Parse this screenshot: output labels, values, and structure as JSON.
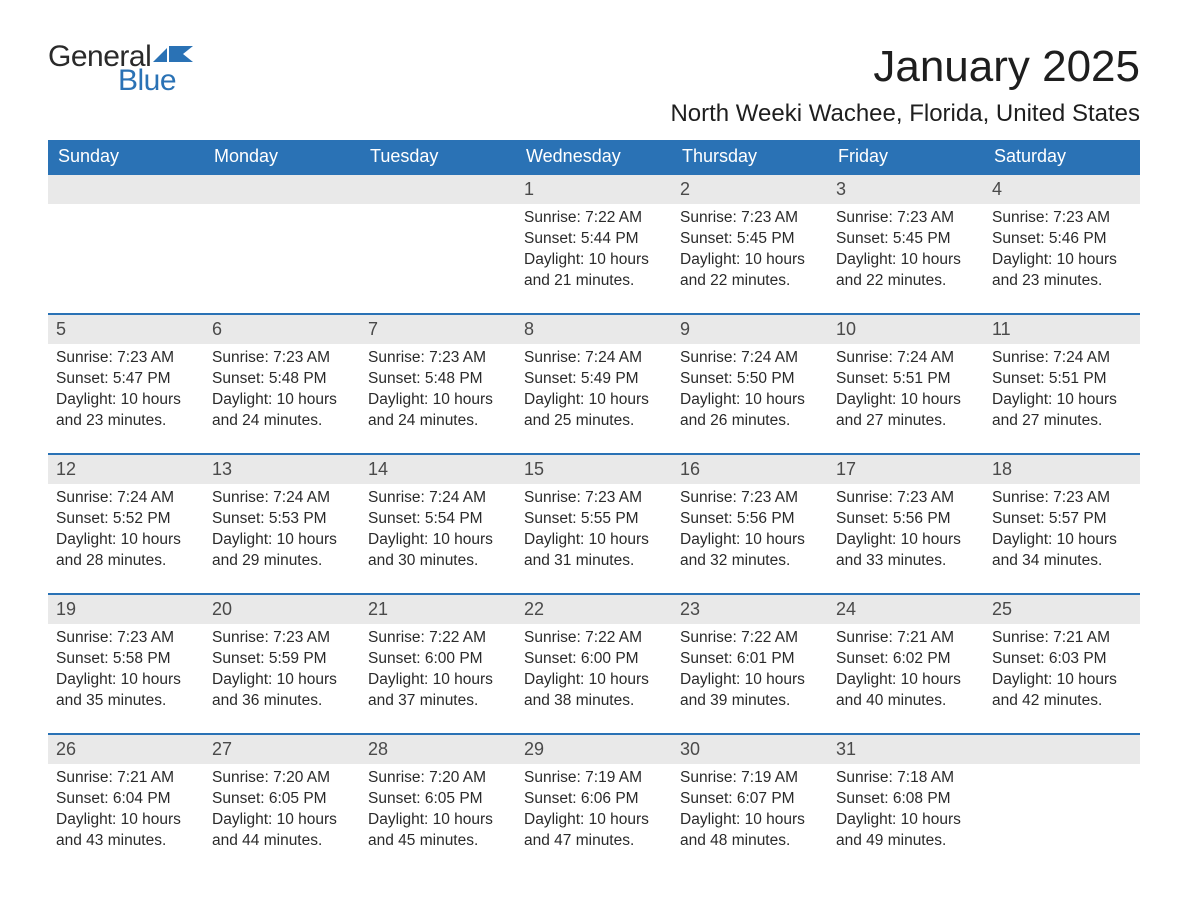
{
  "logo": {
    "top": "General",
    "bottom": "Blue"
  },
  "title": "January 2025",
  "subtitle": "North Weeki Wachee, Florida, United States",
  "colors": {
    "header_bg": "#2a72b5",
    "header_text": "#ffffff",
    "daynum_bg": "#e9e9e9",
    "body_text": "#2a2a2a",
    "logo_dark": "#2a2a2a",
    "logo_blue": "#2a72b5",
    "page_bg": "#ffffff"
  },
  "fonts": {
    "title_size": 44,
    "subtitle_size": 24,
    "header_size": 18,
    "daynum_size": 18,
    "detail_size": 15.5
  },
  "dayHeaders": [
    "Sunday",
    "Monday",
    "Tuesday",
    "Wednesday",
    "Thursday",
    "Friday",
    "Saturday"
  ],
  "weeks": [
    [
      null,
      null,
      null,
      {
        "n": "1",
        "sr": "7:22 AM",
        "ss": "5:44 PM",
        "dh": "10",
        "dm": "21"
      },
      {
        "n": "2",
        "sr": "7:23 AM",
        "ss": "5:45 PM",
        "dh": "10",
        "dm": "22"
      },
      {
        "n": "3",
        "sr": "7:23 AM",
        "ss": "5:45 PM",
        "dh": "10",
        "dm": "22"
      },
      {
        "n": "4",
        "sr": "7:23 AM",
        "ss": "5:46 PM",
        "dh": "10",
        "dm": "23"
      }
    ],
    [
      {
        "n": "5",
        "sr": "7:23 AM",
        "ss": "5:47 PM",
        "dh": "10",
        "dm": "23"
      },
      {
        "n": "6",
        "sr": "7:23 AM",
        "ss": "5:48 PM",
        "dh": "10",
        "dm": "24"
      },
      {
        "n": "7",
        "sr": "7:23 AM",
        "ss": "5:48 PM",
        "dh": "10",
        "dm": "24"
      },
      {
        "n": "8",
        "sr": "7:24 AM",
        "ss": "5:49 PM",
        "dh": "10",
        "dm": "25"
      },
      {
        "n": "9",
        "sr": "7:24 AM",
        "ss": "5:50 PM",
        "dh": "10",
        "dm": "26"
      },
      {
        "n": "10",
        "sr": "7:24 AM",
        "ss": "5:51 PM",
        "dh": "10",
        "dm": "27"
      },
      {
        "n": "11",
        "sr": "7:24 AM",
        "ss": "5:51 PM",
        "dh": "10",
        "dm": "27"
      }
    ],
    [
      {
        "n": "12",
        "sr": "7:24 AM",
        "ss": "5:52 PM",
        "dh": "10",
        "dm": "28"
      },
      {
        "n": "13",
        "sr": "7:24 AM",
        "ss": "5:53 PM",
        "dh": "10",
        "dm": "29"
      },
      {
        "n": "14",
        "sr": "7:24 AM",
        "ss": "5:54 PM",
        "dh": "10",
        "dm": "30"
      },
      {
        "n": "15",
        "sr": "7:23 AM",
        "ss": "5:55 PM",
        "dh": "10",
        "dm": "31"
      },
      {
        "n": "16",
        "sr": "7:23 AM",
        "ss": "5:56 PM",
        "dh": "10",
        "dm": "32"
      },
      {
        "n": "17",
        "sr": "7:23 AM",
        "ss": "5:56 PM",
        "dh": "10",
        "dm": "33"
      },
      {
        "n": "18",
        "sr": "7:23 AM",
        "ss": "5:57 PM",
        "dh": "10",
        "dm": "34"
      }
    ],
    [
      {
        "n": "19",
        "sr": "7:23 AM",
        "ss": "5:58 PM",
        "dh": "10",
        "dm": "35"
      },
      {
        "n": "20",
        "sr": "7:23 AM",
        "ss": "5:59 PM",
        "dh": "10",
        "dm": "36"
      },
      {
        "n": "21",
        "sr": "7:22 AM",
        "ss": "6:00 PM",
        "dh": "10",
        "dm": "37"
      },
      {
        "n": "22",
        "sr": "7:22 AM",
        "ss": "6:00 PM",
        "dh": "10",
        "dm": "38"
      },
      {
        "n": "23",
        "sr": "7:22 AM",
        "ss": "6:01 PM",
        "dh": "10",
        "dm": "39"
      },
      {
        "n": "24",
        "sr": "7:21 AM",
        "ss": "6:02 PM",
        "dh": "10",
        "dm": "40"
      },
      {
        "n": "25",
        "sr": "7:21 AM",
        "ss": "6:03 PM",
        "dh": "10",
        "dm": "42"
      }
    ],
    [
      {
        "n": "26",
        "sr": "7:21 AM",
        "ss": "6:04 PM",
        "dh": "10",
        "dm": "43"
      },
      {
        "n": "27",
        "sr": "7:20 AM",
        "ss": "6:05 PM",
        "dh": "10",
        "dm": "44"
      },
      {
        "n": "28",
        "sr": "7:20 AM",
        "ss": "6:05 PM",
        "dh": "10",
        "dm": "45"
      },
      {
        "n": "29",
        "sr": "7:19 AM",
        "ss": "6:06 PM",
        "dh": "10",
        "dm": "47"
      },
      {
        "n": "30",
        "sr": "7:19 AM",
        "ss": "6:07 PM",
        "dh": "10",
        "dm": "48"
      },
      {
        "n": "31",
        "sr": "7:18 AM",
        "ss": "6:08 PM",
        "dh": "10",
        "dm": "49"
      },
      null
    ]
  ],
  "labels": {
    "sunrise": "Sunrise:",
    "sunset": "Sunset:",
    "daylight": "Daylight:",
    "hours": "hours",
    "and": "and",
    "minutes": "minutes."
  }
}
